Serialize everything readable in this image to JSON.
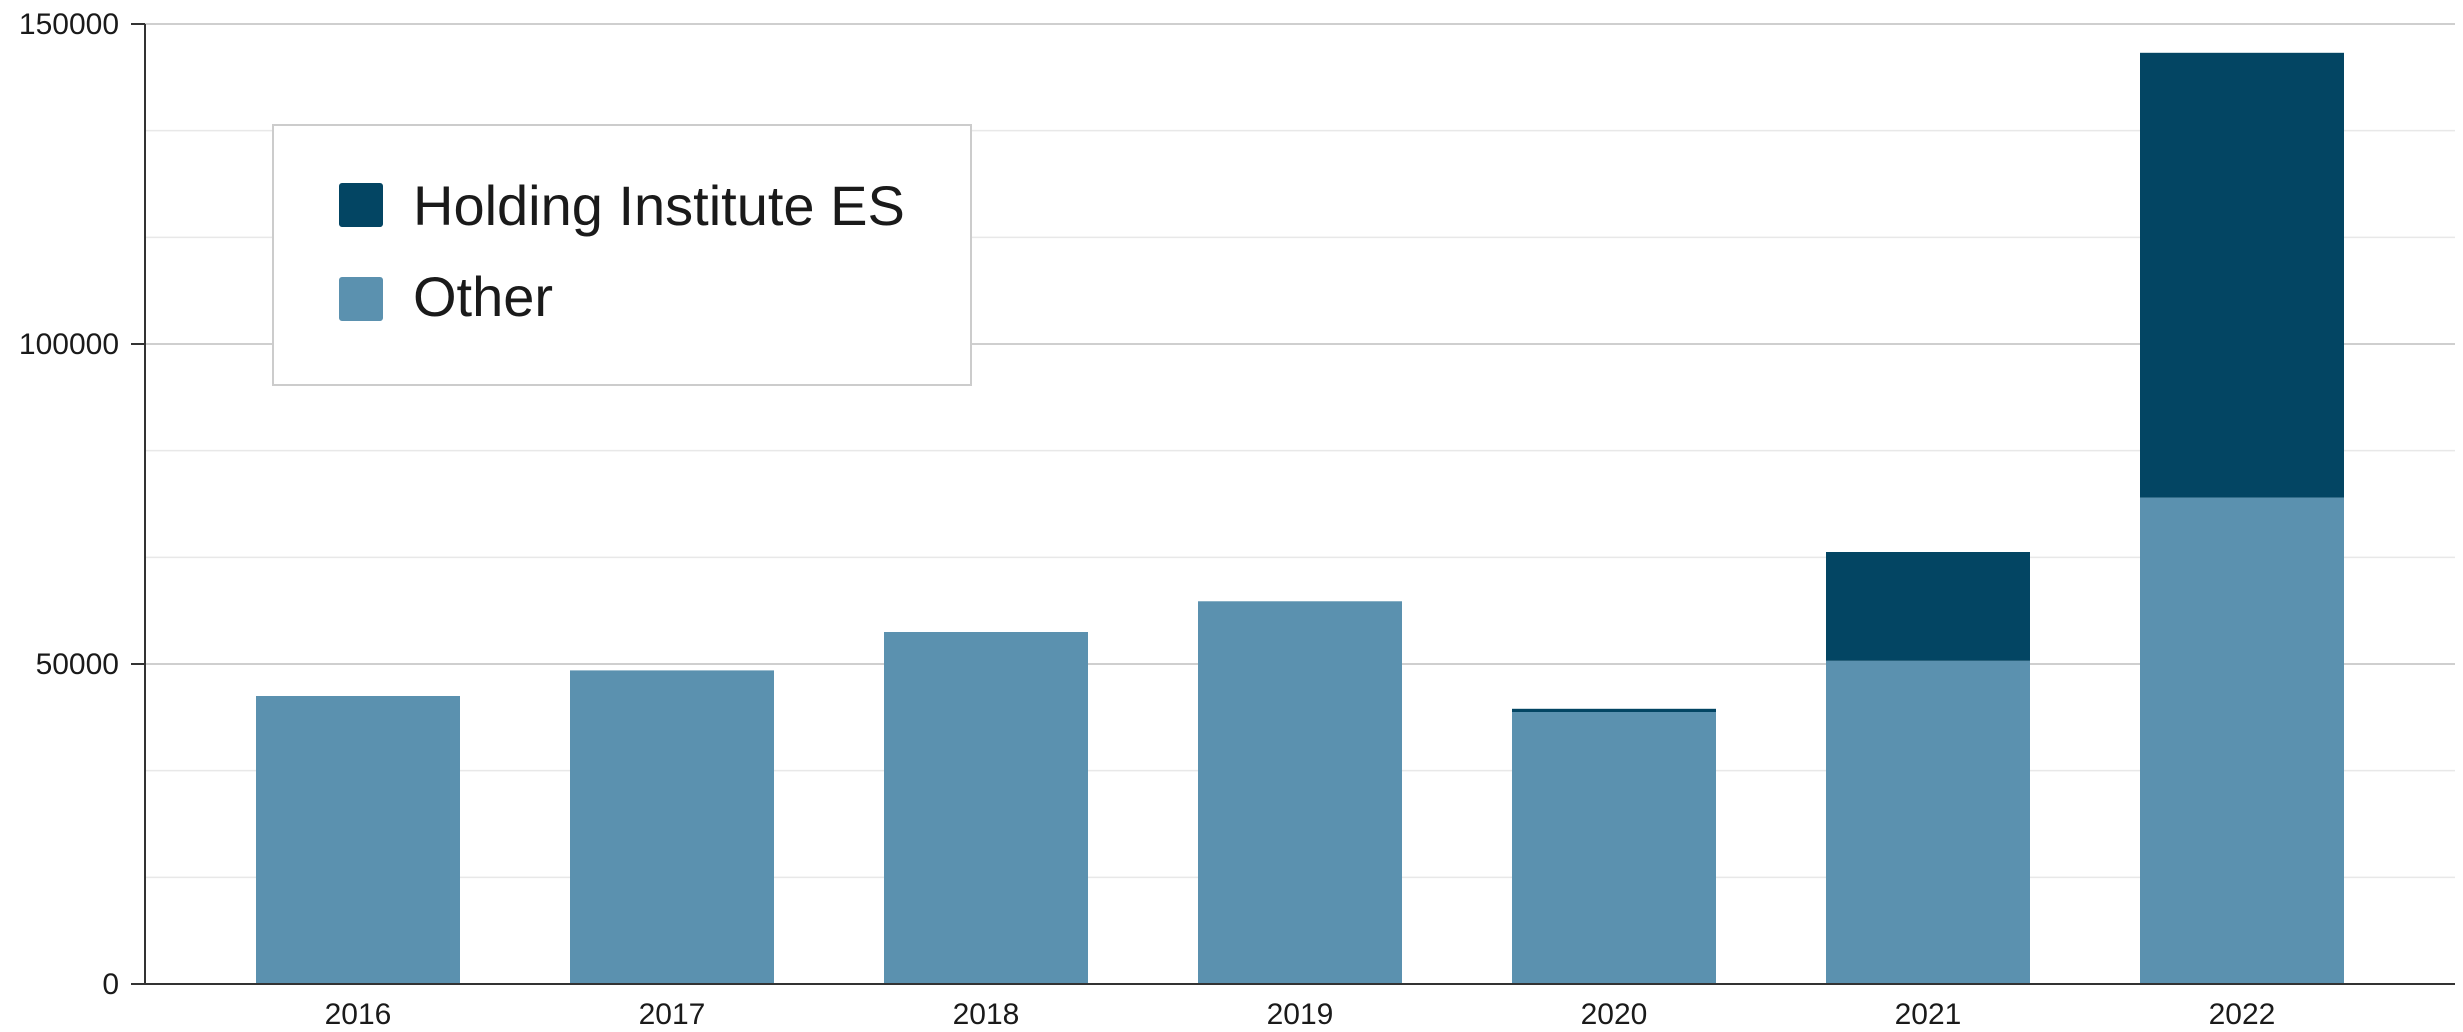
{
  "chart_data": {
    "type": "bar",
    "stacked": true,
    "categories": [
      "2016",
      "2017",
      "2018",
      "2019",
      "2020",
      "2021",
      "2022"
    ],
    "series": [
      {
        "name": "Other",
        "color": "#5b91af",
        "values": [
          45000,
          49000,
          55000,
          59800,
          42500,
          50500,
          76000
        ]
      },
      {
        "name": "Holding Institute ES",
        "color": "#034563",
        "values": [
          0,
          0,
          0,
          0,
          500,
          17000,
          69500
        ]
      }
    ],
    "legend_order": [
      "Holding Institute ES",
      "Other"
    ],
    "legend_position": "top-left",
    "ylim": [
      0,
      150000
    ],
    "yticks": [
      0,
      50000,
      100000,
      150000
    ],
    "yticks_labels": [
      "0",
      "50000",
      "100000",
      "150000"
    ],
    "grid": true,
    "title": "",
    "xlabel": "",
    "ylabel": ""
  }
}
